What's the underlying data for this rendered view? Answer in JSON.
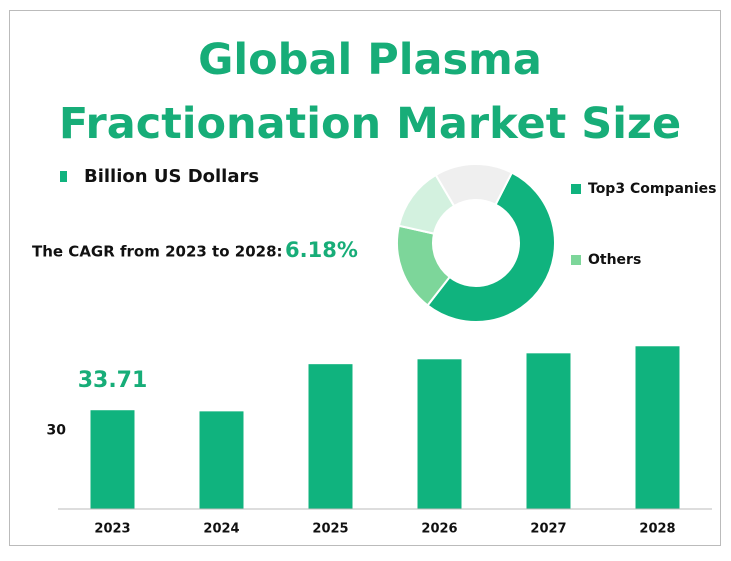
{
  "title": "Global Plasma Fractionation Market Size",
  "cagr_label": "The CAGR from 2023 to 2028:",
  "cagr_value": "6.18%",
  "chart_data": [
    {
      "type": "bar",
      "series_name": "Billion US Dollars",
      "color": "#10b37e",
      "categories": [
        "2023",
        "2024",
        "2025",
        "2026",
        "2027",
        "2028"
      ],
      "values": [
        33.71,
        33.5,
        42.2,
        43.1,
        44.2,
        45.5
      ],
      "value_labels": [
        "33.71",
        null,
        null,
        null,
        null,
        null
      ],
      "ylim": [
        15.5,
        48.5
      ],
      "yticks": [
        30
      ],
      "grid": false
    },
    {
      "type": "pie",
      "donut": true,
      "categories": [
        "Top3 Companies",
        "Others",
        null,
        null
      ],
      "values": [
        53,
        18,
        13,
        16
      ],
      "colors": [
        "#10b37e",
        "#7dd69a",
        "#d3f1df",
        "#efefef"
      ]
    }
  ]
}
